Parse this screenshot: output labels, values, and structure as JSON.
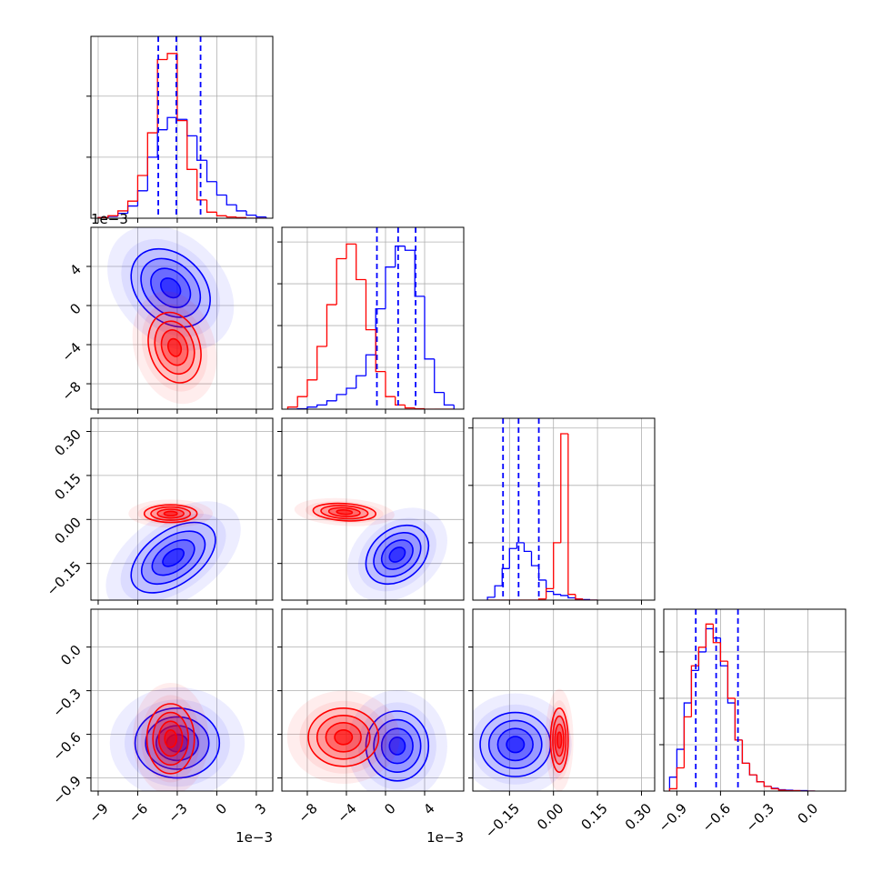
{
  "chart_data": {
    "type": "corner",
    "series_colors": [
      "#0000ff",
      "#ff0000"
    ],
    "params": [
      {
        "lim": [
          -9.55,
          4.25
        ],
        "ticks": [
          {
            "value": -9,
            "label": "−9"
          },
          {
            "value": -6,
            "label": "−6"
          },
          {
            "value": -3,
            "label": "−3"
          },
          0,
          3
        ],
        "offset_label": "1e−3"
      },
      {
        "lim": [
          -10.6,
          8.0
        ],
        "ticks": [
          {
            "value": -8,
            "label": "−8"
          },
          {
            "value": -4,
            "label": "−4"
          },
          0,
          4
        ],
        "offset_label": "1e−3"
      },
      {
        "lim": [
          -0.275,
          0.345
        ],
        "ticks": [
          {
            "value": -0.15,
            "label": "−0.15"
          },
          {
            "value": 0,
            "label": "0.00"
          },
          {
            "value": 0.15,
            "label": "0.15"
          },
          {
            "value": 0.3,
            "label": "0.30"
          }
        ]
      },
      {
        "lim": [
          -0.99,
          0.26
        ],
        "ticks": [
          {
            "value": -0.9,
            "label": "−0.9"
          },
          {
            "value": -0.6,
            "label": "−0.6"
          },
          {
            "value": -0.3,
            "label": "−0.3"
          },
          {
            "value": 0,
            "label": "0.0"
          }
        ]
      }
    ],
    "diagonal": [
      {
        "bins": [
          -9,
          -8.25,
          -7.5,
          -6.75,
          -6,
          -5.25,
          -4.5,
          -3.75,
          -3,
          -2.25,
          -1.5,
          -0.75,
          0,
          0.75,
          1.5,
          2.25,
          3,
          3.75
        ],
        "ylim": [
          0,
          2.98
        ],
        "yticks": [
          1,
          2
        ],
        "values": [
          [
            0.01,
            0.03,
            0.08,
            0.2,
            0.45,
            1.0,
            1.45,
            1.65,
            1.62,
            1.35,
            0.95,
            0.6,
            0.38,
            0.22,
            0.12,
            0.05,
            0.02
          ],
          [
            0.01,
            0.04,
            0.12,
            0.28,
            0.7,
            1.4,
            2.6,
            2.7,
            1.6,
            0.8,
            0.3,
            0.1,
            0.04,
            0.02,
            0.01,
            0,
            0
          ]
        ],
        "quantiles": [
          -4.44,
          -3.07,
          -1.23
        ]
      },
      {
        "bins": [
          -10,
          -9,
          -8,
          -7,
          -6,
          -5,
          -4,
          -3,
          -2,
          -1,
          0,
          1,
          2,
          3,
          4,
          5,
          6,
          7
        ],
        "ylim": [
          0,
          4.35
        ],
        "yticks": [
          1,
          2,
          3,
          4
        ],
        "values": [
          [
            0,
            0.01,
            0.05,
            0.1,
            0.2,
            0.35,
            0.5,
            0.8,
            1.3,
            2.4,
            3.4,
            3.9,
            3.8,
            2.7,
            1.2,
            0.4,
            0.1
          ],
          [
            0.05,
            0.3,
            0.7,
            1.5,
            2.5,
            3.6,
            3.95,
            3.1,
            1.9,
            0.9,
            0.3,
            0.1,
            0.03,
            0.01,
            0,
            0,
            0
          ]
        ],
        "quantiles": [
          -0.88,
          1.29,
          3.08
        ]
      },
      {
        "bins": [
          -0.225,
          -0.2,
          -0.175,
          -0.15,
          -0.125,
          -0.1,
          -0.075,
          -0.05,
          -0.025,
          0,
          0.025,
          0.05,
          0.075,
          0.1,
          0.125,
          0.15
        ],
        "ylim": [
          0,
          3.17
        ],
        "yticks": [
          1,
          2,
          3
        ],
        "values": [
          [
            0.05,
            0.25,
            0.55,
            0.9,
            1.0,
            0.85,
            0.6,
            0.35,
            0.15,
            0.1,
            0.08,
            0.04,
            0.02,
            0.01,
            0
          ],
          [
            0,
            0,
            0,
            0,
            0,
            0,
            0,
            0.02,
            0.2,
            1.0,
            2.9,
            0.1,
            0.02,
            0,
            0
          ]
        ],
        "quantiles": [
          -0.172,
          -0.119,
          -0.05
        ]
      },
      {
        "bins": [
          -0.95,
          -0.9,
          -0.85,
          -0.8,
          -0.75,
          -0.7,
          -0.65,
          -0.6,
          -0.55,
          -0.5,
          -0.45,
          -0.4,
          -0.35,
          -0.3,
          -0.25,
          -0.2,
          -0.15,
          -0.1,
          -0.05,
          0,
          0.05
        ],
        "ylim": [
          0,
          3.92
        ],
        "yticks": [
          1,
          2,
          3
        ],
        "values": [
          [
            0.3,
            0.9,
            1.9,
            2.6,
            3.0,
            3.5,
            3.3,
            2.7,
            1.9,
            1.1,
            0.6,
            0.35,
            0.2,
            0.1,
            0.06,
            0.03,
            0.02,
            0.01,
            0.01,
            0
          ],
          [
            0.05,
            0.5,
            1.6,
            2.7,
            3.1,
            3.6,
            3.2,
            2.8,
            2.0,
            1.1,
            0.6,
            0.35,
            0.2,
            0.1,
            0.05,
            0.02,
            0.01,
            0.01,
            0,
            0
          ]
        ],
        "quantiles": [
          -0.77,
          -0.63,
          -0.48
        ]
      }
    ],
    "pairs": [
      {
        "x": 0,
        "y": 1,
        "components": [
          {
            "center": [
              -3.5,
              1.8
            ],
            "sd": [
              1.5,
              2.0
            ],
            "corr": -0.3
          },
          {
            "center": [
              -3.2,
              -4.3
            ],
            "sd": [
              1.0,
              1.8
            ],
            "corr": -0.2
          }
        ]
      },
      {
        "x": 0,
        "y": 2,
        "components": [
          {
            "center": [
              -3.3,
              -0.13
            ],
            "sd": [
              1.6,
              0.06
            ],
            "corr": 0.5
          },
          {
            "center": [
              -3.5,
              0.02
            ],
            "sd": [
              1.0,
              0.015
            ],
            "corr": 0
          }
        ]
      },
      {
        "x": 1,
        "y": 2,
        "components": [
          {
            "center": [
              1.2,
              -0.12
            ],
            "sd": [
              1.6,
              0.05
            ],
            "corr": 0.3
          },
          {
            "center": [
              -4.2,
              0.025
            ],
            "sd": [
              1.6,
              0.015
            ],
            "corr": -0.2
          }
        ]
      },
      {
        "x": 0,
        "y": 3,
        "components": [
          {
            "center": [
              -3.0,
              -0.66
            ],
            "sd": [
              1.6,
              0.12
            ],
            "corr": 0
          },
          {
            "center": [
              -3.5,
              -0.63
            ],
            "sd": [
              0.9,
              0.12
            ],
            "corr": 0
          }
        ]
      },
      {
        "x": 1,
        "y": 3,
        "components": [
          {
            "center": [
              1.2,
              -0.68
            ],
            "sd": [
              1.6,
              0.12
            ],
            "corr": 0
          },
          {
            "center": [
              -4.3,
              -0.62
            ],
            "sd": [
              1.8,
              0.1
            ],
            "corr": 0
          }
        ]
      },
      {
        "x": 2,
        "y": 3,
        "components": [
          {
            "center": [
              -0.13,
              -0.67
            ],
            "sd": [
              0.06,
              0.11
            ],
            "corr": 0
          },
          {
            "center": [
              0.02,
              -0.64
            ],
            "sd": [
              0.015,
              0.11
            ],
            "corr": 0
          }
        ]
      }
    ]
  }
}
